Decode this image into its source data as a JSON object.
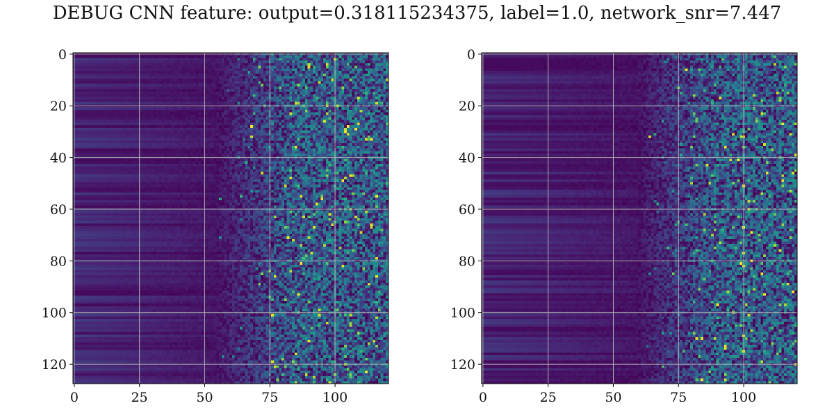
{
  "title": "DEBUG CNN feature: output=0.318115234375, label=1.0, network_snr=7.447",
  "chart_data": [
    {
      "type": "heatmap",
      "panel": "left",
      "colormap": "viridis",
      "rows": 128,
      "cols": 121,
      "xlim": [
        0,
        121
      ],
      "ylim": [
        128,
        0
      ],
      "xticks": [
        "0",
        "25",
        "50",
        "75",
        "100"
      ],
      "xtick_values": [
        0,
        25,
        50,
        75,
        100
      ],
      "yticks": [
        "0",
        "20",
        "40",
        "60",
        "80",
        "100",
        "120"
      ],
      "ytick_values": [
        0,
        20,
        40,
        60,
        80,
        100,
        120
      ],
      "grid": true,
      "pattern": "horizontal banded low values for columns 0-50; increasingly noisy higher values for columns 60-121 with sparse bright yellow pixels",
      "noise_onset_col": 55,
      "seed": 7
    },
    {
      "type": "heatmap",
      "panel": "right",
      "colormap": "viridis",
      "rows": 128,
      "cols": 121,
      "xlim": [
        0,
        121
      ],
      "ylim": [
        128,
        0
      ],
      "xticks": [
        "0",
        "25",
        "50",
        "75",
        "100"
      ],
      "xtick_values": [
        0,
        25,
        50,
        75,
        100
      ],
      "yticks": [
        "0",
        "20",
        "40",
        "60",
        "80",
        "100",
        "120"
      ],
      "ytick_values": [
        0,
        20,
        40,
        60,
        80,
        100,
        120
      ],
      "grid": true,
      "pattern": "horizontal banded low values for columns 0-50; moderately noisy values for columns 60-121 with few bright pixels",
      "noise_onset_col": 60,
      "seed": 13
    }
  ]
}
